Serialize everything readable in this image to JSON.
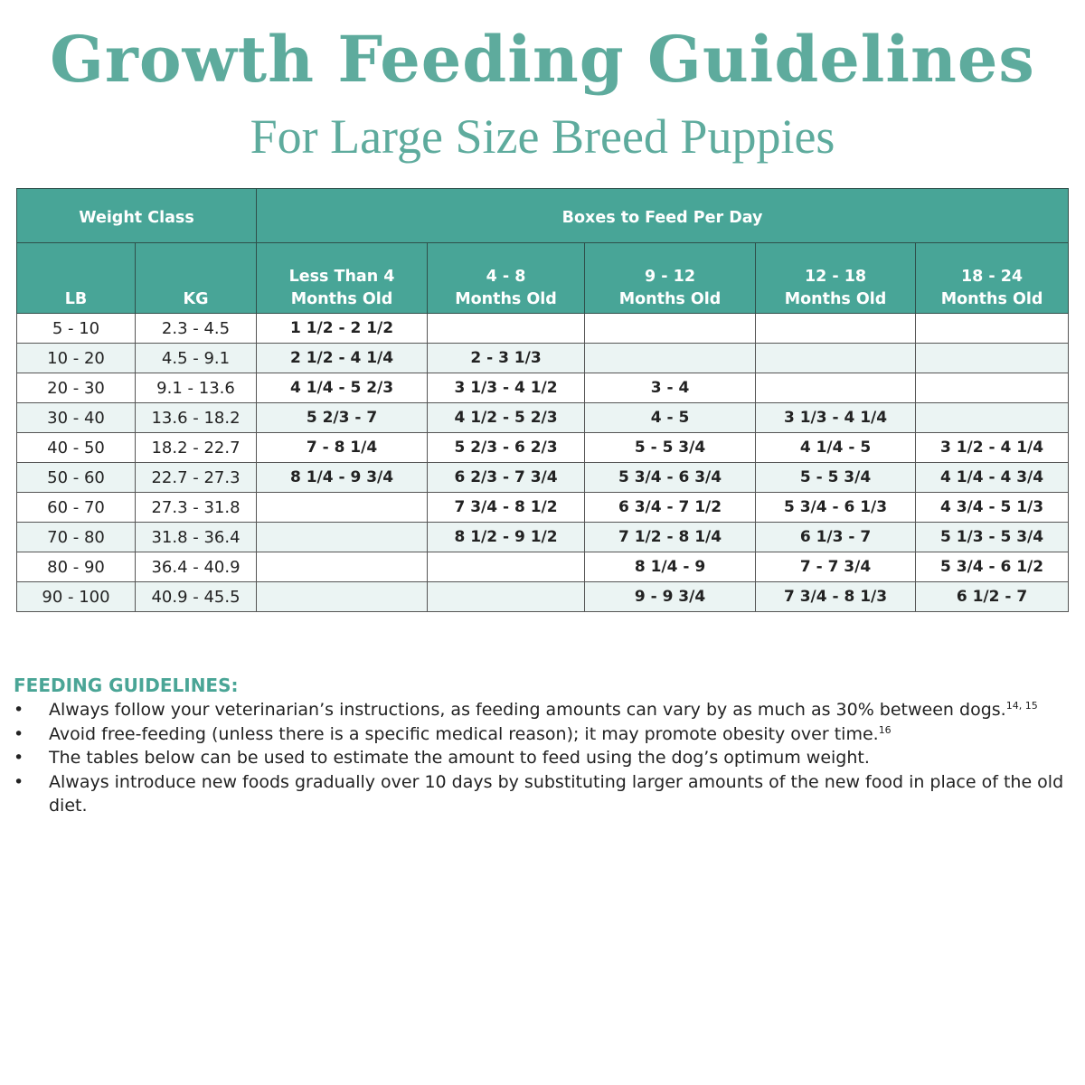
{
  "title": "Growth Feeding Guidelines",
  "subtitle": "For Large Size Breed Puppies",
  "table": {
    "group_headers": {
      "weight": "Weight Class",
      "boxes": "Boxes to Feed Per Day"
    },
    "columns": [
      {
        "line1": "",
        "line2": "LB"
      },
      {
        "line1": "",
        "line2": "KG"
      },
      {
        "line1": "Less Than 4",
        "line2": "Months Old"
      },
      {
        "line1": "4 - 8",
        "line2": "Months Old"
      },
      {
        "line1": "9 - 12",
        "line2": "Months Old"
      },
      {
        "line1": "12 - 18",
        "line2": "Months Old"
      },
      {
        "line1": "18 - 24",
        "line2": "Months Old"
      }
    ],
    "rows": [
      [
        "5 - 10",
        "2.3 - 4.5",
        "1 1/2 - 2 1/2",
        "",
        "",
        "",
        ""
      ],
      [
        "10 - 20",
        "4.5 - 9.1",
        "2 1/2 - 4 1/4",
        "2 - 3 1/3",
        "",
        "",
        ""
      ],
      [
        "20 - 30",
        "9.1 - 13.6",
        "4 1/4 - 5 2/3",
        "3 1/3 - 4 1/2",
        "3 - 4",
        "",
        ""
      ],
      [
        "30 - 40",
        "13.6 - 18.2",
        "5 2/3 - 7",
        "4 1/2 - 5 2/3",
        "4 - 5",
        "3 1/3 - 4 1/4",
        ""
      ],
      [
        "40 - 50",
        "18.2 - 22.7",
        "7 - 8 1/4",
        "5 2/3 - 6 2/3",
        "5 - 5 3/4",
        "4 1/4 - 5",
        "3 1/2 - 4 1/4"
      ],
      [
        "50 - 60",
        "22.7 - 27.3",
        "8 1/4 - 9 3/4",
        "6 2/3 - 7 3/4",
        "5 3/4 - 6 3/4",
        "5 - 5 3/4",
        "4 1/4 - 4 3/4"
      ],
      [
        "60 - 70",
        "27.3 - 31.8",
        "",
        "7 3/4 - 8 1/2",
        "6 3/4 - 7 1/2",
        "5 3/4 - 6 1/3",
        "4 3/4 - 5 1/3"
      ],
      [
        "70 - 80",
        "31.8 - 36.4",
        "",
        "8 1/2 - 9 1/2",
        "7 1/2 - 8 1/4",
        "6 1/3 - 7",
        "5 1/3 - 5 3/4"
      ],
      [
        "80 - 90",
        "36.4 - 40.9",
        "",
        "",
        "8 1/4 - 9",
        "7 - 7 3/4",
        "5 3/4 - 6 1/2"
      ],
      [
        "90 - 100",
        "40.9 - 45.5",
        "",
        "",
        "9 - 9 3/4",
        "7 3/4 - 8 1/3",
        "6 1/2 - 7"
      ]
    ]
  },
  "guidelines": {
    "heading": "FEEDING GUIDELINES:",
    "items": [
      {
        "text": "Always follow your veterinarian’s instructions, as feeding amounts can vary by as much as 30% between dogs.",
        "ref": "14, 15"
      },
      {
        "text": "Avoid free-feeding (unless there is a specific medical reason); it may promote obesity over time.",
        "ref": "16"
      },
      {
        "text": "The tables below can be used to estimate the amount to feed using the dog’s optimum weight.",
        "ref": ""
      },
      {
        "text": "Always introduce new foods gradually over 10 days by substituting larger amounts of the new food in place of the old diet.",
        "ref": ""
      }
    ]
  },
  "colors": {
    "accent": "#5eab9d",
    "header_bg": "#48a597",
    "alt_row": "#ebf4f3"
  }
}
